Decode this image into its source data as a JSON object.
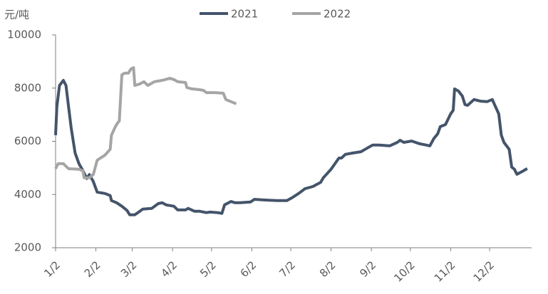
{
  "chart_data": {
    "type": "line",
    "y_label": "元/吨",
    "ylim": [
      2000,
      10000
    ],
    "yticks": [
      2000,
      4000,
      6000,
      8000,
      10000
    ],
    "xlim": [
      "1/2",
      "12/31"
    ],
    "xticks": [
      "1/2",
      "2/2",
      "3/2",
      "4/2",
      "5/2",
      "6/2",
      "7/2",
      "8/2",
      "9/2",
      "10/2",
      "11/2",
      "12/2"
    ],
    "legend": "top",
    "series": [
      {
        "name": "2021",
        "color": "#44546a",
        "x": [
          "1/2",
          "1/3",
          "1/5",
          "1/8",
          "1/10",
          "1/12",
          "1/14",
          "1/17",
          "1/20",
          "1/23",
          "1/26",
          "1/28",
          "1/31",
          "2/3",
          "2/9",
          "2/13",
          "2/14",
          "2/18",
          "2/22",
          "2/26",
          "2/28",
          "3/4",
          "3/7",
          "3/10",
          "3/17",
          "3/22",
          "3/25",
          "3/28",
          "4/3",
          "4/6",
          "4/12",
          "4/14",
          "4/19",
          "4/23",
          "4/28",
          "5/1",
          "5/7",
          "5/10",
          "5/12",
          "5/17",
          "5/20",
          "5/24",
          "6/1",
          "6/4",
          "6/10",
          "6/21",
          "6/29",
          "7/3",
          "7/8",
          "7/13",
          "7/19",
          "7/25",
          "7/27",
          "7/30",
          "8/2",
          "8/5",
          "8/8",
          "8/10",
          "8/13",
          "8/19",
          "8/25",
          "8/30",
          "9/3",
          "9/8",
          "9/16",
          "9/22",
          "9/24",
          "9/27",
          "10/3",
          "10/9",
          "10/14",
          "10/17",
          "10/20",
          "10/23",
          "10/25",
          "10/29",
          "11/2",
          "11/4",
          "11/5",
          "11/8",
          "11/11",
          "11/13",
          "11/15",
          "11/20",
          "11/25",
          "11/30",
          "12/4",
          "12/7",
          "12/9",
          "12/11",
          "12/13",
          "12/17",
          "12/19",
          "12/21",
          "12/23",
          "12/26",
          "12/28",
          "12/30",
          "12/31"
        ],
        "values": [
          6230,
          7300,
          8100,
          8290,
          8100,
          7300,
          6500,
          5560,
          5160,
          4900,
          4600,
          4750,
          4490,
          4090,
          4040,
          3960,
          3770,
          3690,
          3560,
          3400,
          3240,
          3240,
          3340,
          3450,
          3480,
          3660,
          3690,
          3610,
          3560,
          3420,
          3420,
          3480,
          3370,
          3370,
          3320,
          3340,
          3320,
          3290,
          3610,
          3740,
          3690,
          3690,
          3720,
          3820,
          3800,
          3770,
          3770,
          3880,
          4040,
          4220,
          4300,
          4460,
          4630,
          4790,
          4950,
          5160,
          5370,
          5370,
          5510,
          5560,
          5610,
          5750,
          5860,
          5860,
          5830,
          5960,
          6040,
          5960,
          6010,
          5910,
          5860,
          5830,
          6100,
          6280,
          6550,
          6630,
          7030,
          7170,
          7970,
          7890,
          7700,
          7380,
          7350,
          7570,
          7510,
          7490,
          7570,
          7250,
          7030,
          6230,
          5960,
          5700,
          5030,
          4950,
          4760,
          4840,
          4890,
          4950,
          4970
        ]
      },
      {
        "name": "2022",
        "color": "#a5a5a5",
        "x": [
          "1/2",
          "1/4",
          "1/8",
          "1/12",
          "1/20",
          "1/23",
          "1/24",
          "1/28",
          "1/31",
          "2/3",
          "2/9",
          "2/13",
          "2/14",
          "2/17",
          "2/19",
          "2/20",
          "2/22",
          "2/24",
          "2/27",
          "3/1",
          "3/3",
          "3/4",
          "3/8",
          "3/11",
          "3/14",
          "3/19",
          "3/25",
          "3/31",
          "4/3",
          "4/6",
          "4/12",
          "4/13",
          "4/17",
          "4/23",
          "4/26",
          "4/28",
          "5/4",
          "5/11",
          "5/13",
          "5/17",
          "5/21"
        ],
        "values": [
          4970,
          5160,
          5160,
          4970,
          4950,
          4890,
          4630,
          4630,
          4750,
          5290,
          5480,
          5700,
          6230,
          6550,
          6710,
          6760,
          8500,
          8560,
          8560,
          8720,
          8770,
          8100,
          8160,
          8240,
          8100,
          8240,
          8290,
          8370,
          8320,
          8240,
          8210,
          8020,
          7970,
          7940,
          7910,
          7830,
          7830,
          7810,
          7570,
          7490,
          7410
        ]
      }
    ]
  }
}
